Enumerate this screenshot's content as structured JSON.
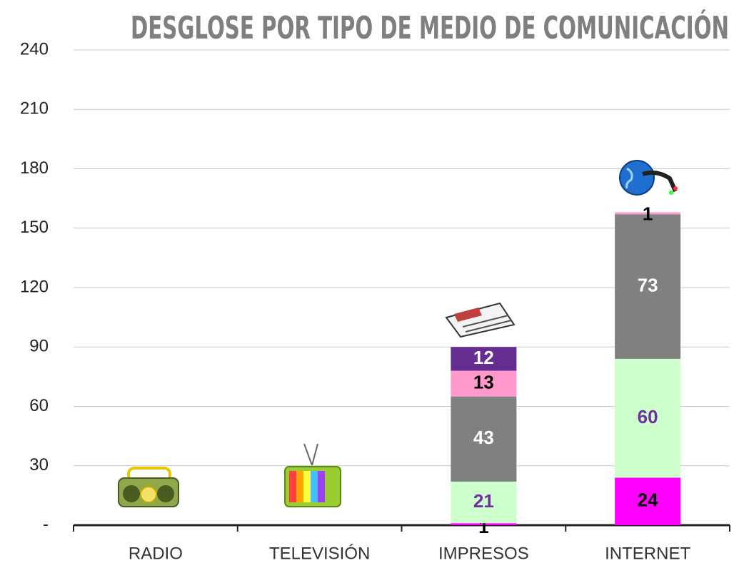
{
  "chart_data": {
    "type": "stacked_bar",
    "title": "DESGLOSE POR TIPO DE MEDIO DE COMUNICACIÓN",
    "categories": [
      "RADIO",
      "TELEVISIÓN",
      "IMPRESOS",
      "INTERNET"
    ],
    "series": [
      {
        "color": "#ff00ff",
        "label_color": "#000000",
        "values": [
          null,
          null,
          1,
          24
        ]
      },
      {
        "color": "#ccffcc",
        "label_color": "#7030a0",
        "values": [
          null,
          null,
          21,
          60
        ]
      },
      {
        "color": "#808080",
        "label_color": "#ffffff",
        "values": [
          null,
          null,
          43,
          73
        ]
      },
      {
        "color": "#ff99cc",
        "label_color": "#000000",
        "values": [
          null,
          null,
          13,
          1
        ]
      },
      {
        "color": "#662d91",
        "label_color": "#ffffff",
        "values": [
          null,
          null,
          12,
          null
        ]
      }
    ],
    "ylim": [
      0,
      240
    ],
    "yticks": [
      {
        "value": 0,
        "label": "-"
      },
      30,
      60,
      90,
      120,
      150,
      180,
      210,
      240
    ],
    "grid": true
  }
}
